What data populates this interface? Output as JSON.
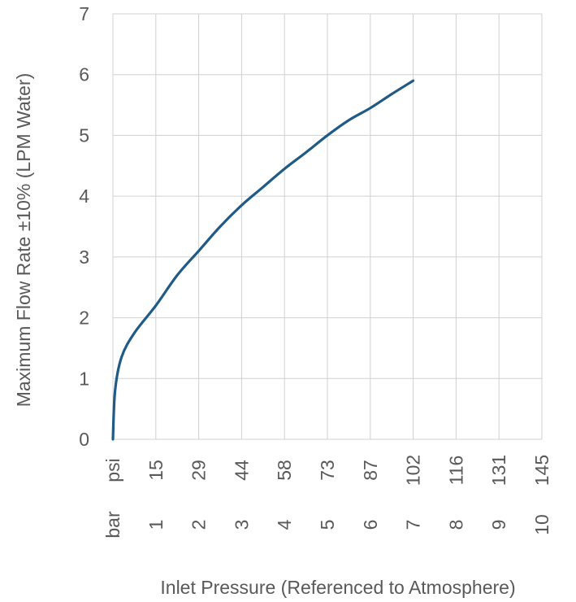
{
  "chart_data": {
    "type": "line",
    "title": "",
    "xlabel": "Inlet Pressure (Referenced to Atmosphere)",
    "ylabel": "Maximum Flow Rate ±10% (LPM Water)",
    "xlim": [
      0,
      10
    ],
    "ylim": [
      0,
      7
    ],
    "grid": true,
    "legend": "none",
    "y_ticks": [
      "0",
      "1",
      "2",
      "3",
      "4",
      "5",
      "6",
      "7"
    ],
    "x_tick_rows": [
      {
        "unit": "psi",
        "labels": [
          "15",
          "29",
          "44",
          "58",
          "73",
          "87",
          "102",
          "116",
          "131",
          "145"
        ]
      },
      {
        "unit": "bar",
        "labels": [
          "1",
          "2",
          "3",
          "4",
          "5",
          "6",
          "7",
          "8",
          "9",
          "10"
        ]
      }
    ],
    "series": [
      {
        "color": "#1f5b86",
        "x": [
          0,
          0.05,
          0.2,
          0.5,
          1,
          1.5,
          2,
          2.5,
          3,
          3.5,
          4,
          4.5,
          5,
          5.5,
          6,
          6.5,
          7
        ],
        "y": [
          0,
          0.8,
          1.35,
          1.75,
          2.2,
          2.7,
          3.1,
          3.5,
          3.85,
          4.15,
          4.45,
          4.72,
          5.0,
          5.25,
          5.45,
          5.68,
          5.9
        ]
      }
    ]
  }
}
